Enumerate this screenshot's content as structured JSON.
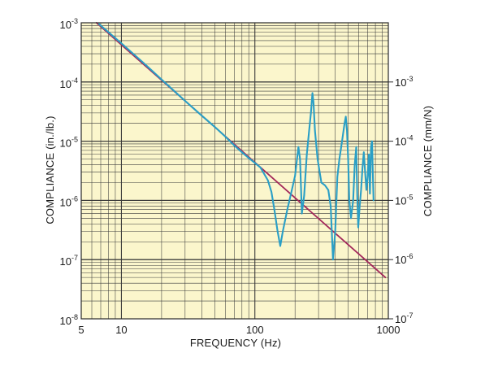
{
  "chart_data": {
    "type": "line",
    "title": "",
    "xlabel": "FREQUENCY (Hz)",
    "ylabel_left": "COMPLIANCE (in./lb.)",
    "ylabel_right": "COMPLIANCE (mm/N)",
    "x_scale": "log",
    "y_scale": "log",
    "xlim": [
      5,
      1000
    ],
    "ylim_left": [
      1e-08,
      0.001
    ],
    "ylim_right": [
      1e-07,
      0.01
    ],
    "grid": true,
    "x_ticks": [
      {
        "value": 5,
        "label": "5"
      },
      {
        "value": 10,
        "label": "10"
      },
      {
        "value": 100,
        "label": "100"
      },
      {
        "value": 1000,
        "label": "1000"
      }
    ],
    "y_ticks_left": [
      {
        "value": 0.001,
        "base": "10",
        "exp": "-3"
      },
      {
        "value": 0.0001,
        "base": "10",
        "exp": "-4"
      },
      {
        "value": 1e-05,
        "base": "10",
        "exp": "-5"
      },
      {
        "value": 1e-06,
        "base": "10",
        "exp": "-6"
      },
      {
        "value": 1e-07,
        "base": "10",
        "exp": "-7"
      },
      {
        "value": 1e-08,
        "base": "10",
        "exp": "-8"
      }
    ],
    "y_ticks_right": [
      {
        "value": 0.001,
        "base": "10",
        "exp": "-3"
      },
      {
        "value": 0.0001,
        "base": "10",
        "exp": "-4"
      },
      {
        "value": 1e-05,
        "base": "10",
        "exp": "-5"
      },
      {
        "value": 1e-06,
        "base": "10",
        "exp": "-6"
      },
      {
        "value": 1e-07,
        "base": "10",
        "exp": "-7"
      }
    ],
    "colors": {
      "background": "#fbf6cc",
      "grid": "#3a3a3a",
      "measured": "#2a9fc6",
      "theoretical": "#a3285a"
    },
    "series": [
      {
        "key": "theoretical",
        "points": [
          [
            6.5,
            0.001
          ],
          [
            950,
            5e-08
          ]
        ]
      },
      {
        "key": "measured",
        "points": [
          [
            6.8,
            0.00095
          ],
          [
            10,
            0.00045
          ],
          [
            15,
            0.0002
          ],
          [
            20,
            0.00011
          ],
          [
            30,
            4.8e-05
          ],
          [
            40,
            2.7e-05
          ],
          [
            50,
            1.75e-05
          ],
          [
            60,
            1.2e-05
          ],
          [
            70,
            8.5e-06
          ],
          [
            80,
            6.5e-06
          ],
          [
            90,
            5.2e-06
          ],
          [
            100,
            4.3e-06
          ],
          [
            110,
            3.6e-06
          ],
          [
            125,
            2.2e-06
          ],
          [
            133,
            1.4e-06
          ],
          [
            140,
            7e-07
          ],
          [
            148,
            3e-07
          ],
          [
            155,
            1.7e-07
          ],
          [
            162,
            3e-07
          ],
          [
            175,
            7e-07
          ],
          [
            188,
            1.4e-06
          ],
          [
            200,
            2.6e-06
          ],
          [
            212,
            8e-06
          ],
          [
            218,
            5e-06
          ],
          [
            225,
            6e-07
          ],
          [
            234,
            1.2e-06
          ],
          [
            245,
            6e-06
          ],
          [
            255,
            1.5e-05
          ],
          [
            263,
            3e-05
          ],
          [
            270,
            6.5e-05
          ],
          [
            275,
            4.5e-05
          ],
          [
            282,
            1.5e-05
          ],
          [
            295,
            5e-06
          ],
          [
            315,
            2e-06
          ],
          [
            335,
            1.8e-06
          ],
          [
            355,
            1.5e-06
          ],
          [
            370,
            8e-07
          ],
          [
            385,
            1e-07
          ],
          [
            400,
            3e-07
          ],
          [
            415,
            2.5e-06
          ],
          [
            430,
            5e-06
          ],
          [
            450,
            1e-05
          ],
          [
            470,
            2e-05
          ],
          [
            480,
            2.6e-05
          ],
          [
            490,
            1.5e-05
          ],
          [
            500,
            5e-06
          ],
          [
            510,
            1e-06
          ],
          [
            525,
            5e-07
          ],
          [
            545,
            1e-06
          ],
          [
            560,
            4e-06
          ],
          [
            575,
            8e-06
          ],
          [
            585,
            1.2e-06
          ],
          [
            595,
            3.5e-07
          ],
          [
            610,
            8e-07
          ],
          [
            625,
            1.5e-06
          ],
          [
            640,
            3.5e-06
          ],
          [
            655,
            6.5e-06
          ],
          [
            670,
            3e-06
          ],
          [
            685,
            1.5e-06
          ],
          [
            700,
            2.5e-06
          ],
          [
            715,
            6e-06
          ],
          [
            728,
            1.3e-06
          ],
          [
            742,
            8e-06
          ],
          [
            755,
            1e-05
          ],
          [
            765,
            3e-06
          ],
          [
            775,
            1e-06
          ]
        ]
      }
    ]
  }
}
